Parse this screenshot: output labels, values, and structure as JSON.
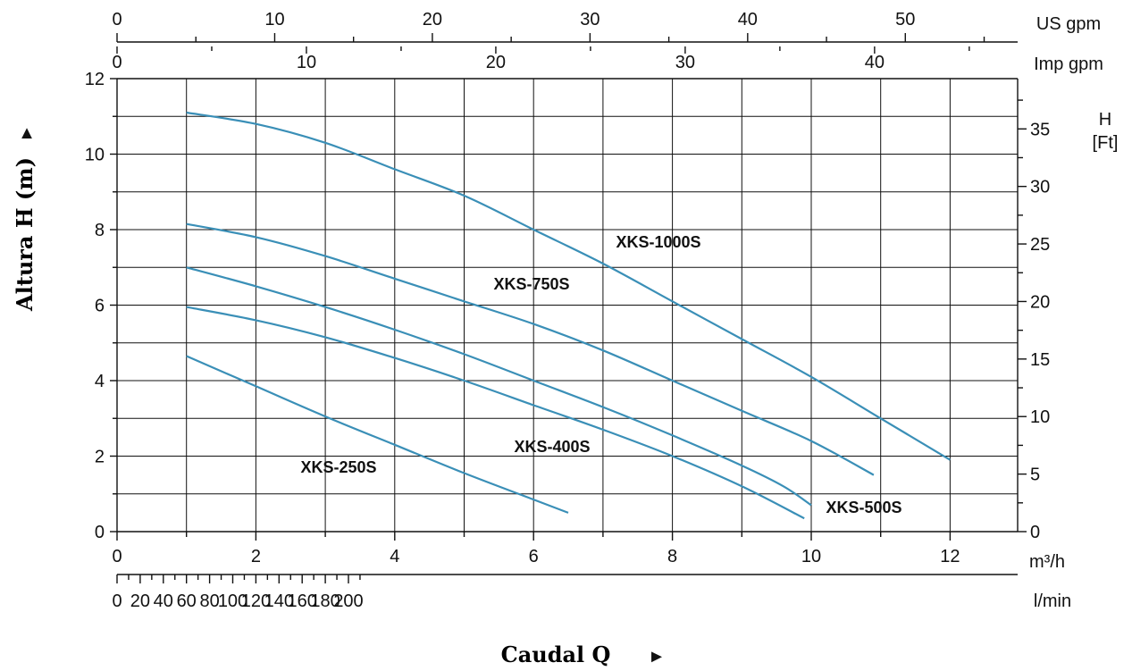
{
  "chart_data": {
    "type": "line",
    "x_axis": {
      "unit_label": "m³/h",
      "range": [
        0,
        13
      ],
      "ticks": [
        0,
        2,
        4,
        6,
        8,
        10,
        12
      ],
      "title": "Caudal Q",
      "title_marker": "►"
    },
    "x_secondary_lmin": {
      "unit_label": "l/min",
      "ticks": [
        0,
        20,
        40,
        60,
        80,
        100,
        120,
        140,
        160,
        180,
        200
      ]
    },
    "x_secondary_us_gpm": {
      "unit_label": "US  gpm",
      "ticks": [
        0,
        10,
        20,
        30,
        40,
        50
      ]
    },
    "x_secondary_imp_gpm": {
      "unit_label": "Imp gpm",
      "ticks": [
        0,
        10,
        20,
        30,
        40
      ]
    },
    "y_axis": {
      "range": [
        0,
        12
      ],
      "ticks": [
        0,
        2,
        4,
        6,
        8,
        10,
        12
      ],
      "title": "Altura H (m)",
      "title_marker": "▲"
    },
    "y_secondary_ft": {
      "unit_label_1": "H",
      "unit_label_2": "[Ft]",
      "ticks": [
        0,
        5,
        10,
        15,
        20,
        25,
        30,
        35
      ]
    },
    "grid": true,
    "series": [
      {
        "name": "XKS-1000S",
        "x": [
          1,
          2,
          3,
          4,
          5,
          6,
          7,
          8,
          9,
          10,
          11,
          12
        ],
        "y": [
          11.1,
          10.8,
          10.3,
          9.6,
          8.9,
          8.0,
          7.1,
          6.1,
          5.1,
          4.1,
          3.0,
          1.9
        ]
      },
      {
        "name": "XKS-750S",
        "x": [
          1,
          2,
          3,
          4,
          5,
          6,
          7,
          8,
          9,
          10,
          10.9
        ],
        "y": [
          8.15,
          7.8,
          7.3,
          6.7,
          6.1,
          5.5,
          4.8,
          4.0,
          3.2,
          2.4,
          1.5
        ]
      },
      {
        "name": "XKS-500S",
        "x": [
          1,
          2,
          3,
          4,
          5,
          6,
          7,
          8,
          9,
          9.6,
          10
        ],
        "y": [
          7.0,
          6.5,
          5.95,
          5.35,
          4.7,
          4.0,
          3.3,
          2.55,
          1.75,
          1.2,
          0.7
        ]
      },
      {
        "name": "XKS-400S",
        "x": [
          1,
          2,
          3,
          4,
          5,
          6,
          7,
          8,
          9,
          9.9
        ],
        "y": [
          5.95,
          5.6,
          5.15,
          4.6,
          4.0,
          3.35,
          2.7,
          2.0,
          1.2,
          0.35
        ]
      },
      {
        "name": "XKS-250S",
        "x": [
          1,
          2,
          3,
          4,
          5,
          6,
          6.5
        ],
        "y": [
          4.65,
          3.85,
          3.05,
          2.3,
          1.55,
          0.85,
          0.5
        ]
      }
    ]
  }
}
